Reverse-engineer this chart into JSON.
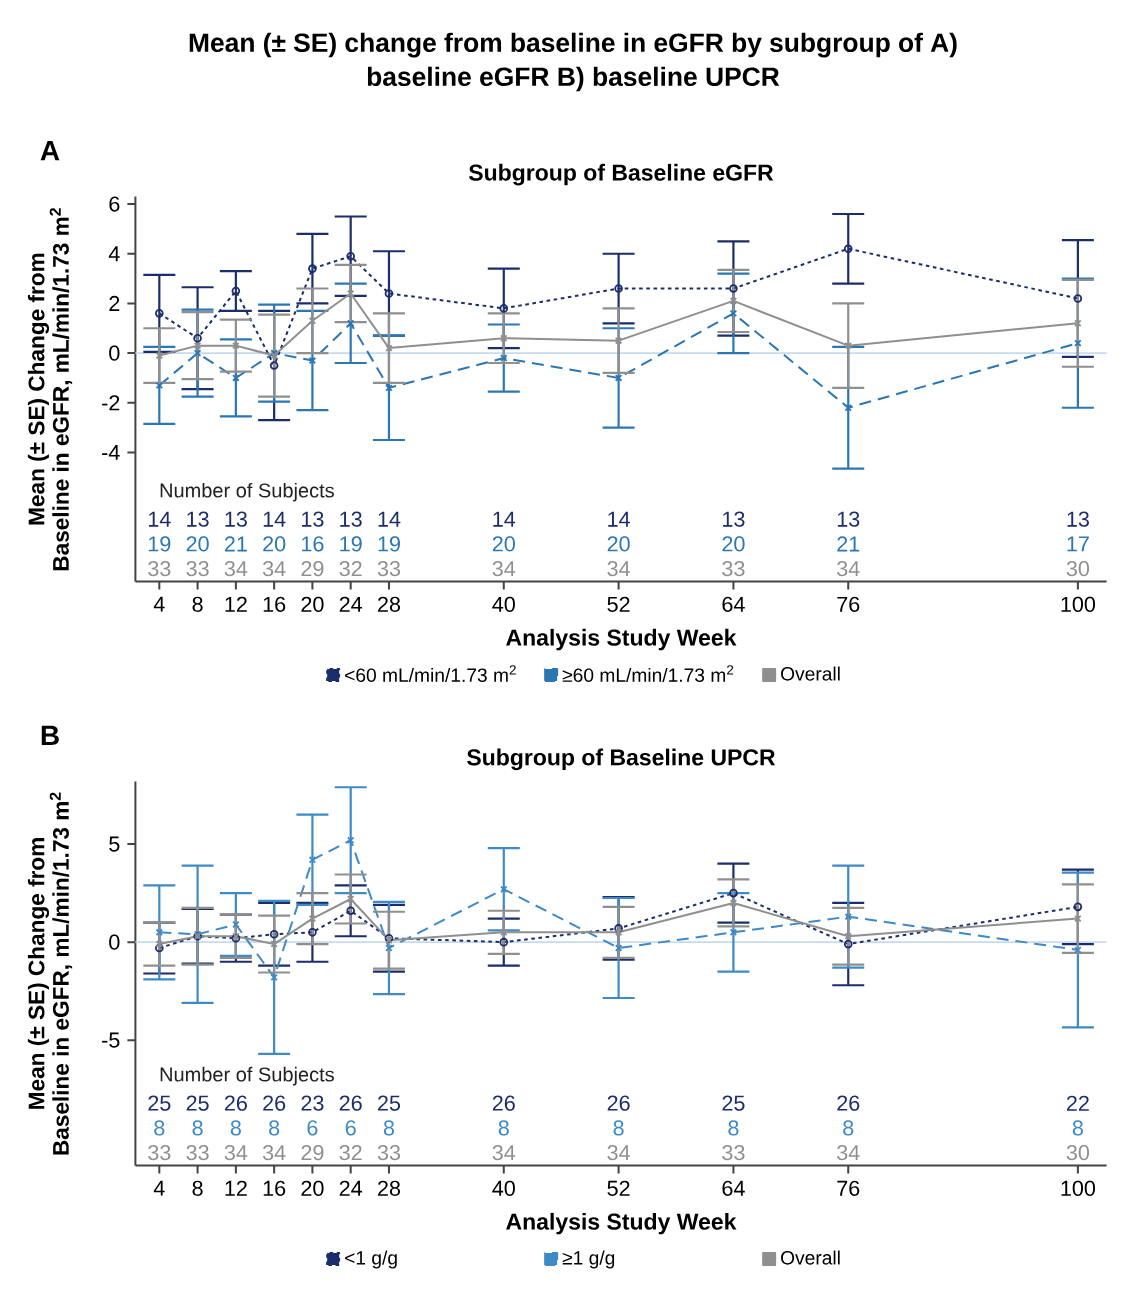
{
  "chart_data": [
    {
      "type": "line",
      "title": "Mean (± SE) change from baseline in eGFR by subgroup of A) baseline eGFR B) baseline UPCR",
      "subtitle": "Subgroup of Baseline eGFR",
      "xlabel": "Analysis Study Week",
      "ylabel": "Mean (± SE) Change from Baseline in eGFR, mL/min/1.73 m$^{2}$",
      "x": [
        4,
        8,
        12,
        16,
        20,
        24,
        28,
        40,
        52,
        64,
        76,
        100
      ],
      "xlim": [
        1.5,
        103
      ],
      "xticks": [
        4,
        8,
        12,
        16,
        20,
        24,
        28,
        40,
        52,
        64,
        76,
        100
      ],
      "ylim": [
        -9.2,
        6.3
      ],
      "yticks": [
        -4,
        -2,
        0,
        2,
        4,
        6
      ],
      "legend": "bottom",
      "ref_lines": [
        {
          "axis": "y",
          "value": 0,
          "color": "#c6dbef"
        }
      ],
      "series": [
        {
          "name": "<60 mL/min/1.73 m$^{2}$",
          "color": "#1c2d6b",
          "marker": "circle",
          "line_style": "dotted",
          "values": [
            1.6,
            0.6,
            2.5,
            -0.5,
            3.4,
            3.9,
            2.4,
            1.8,
            2.6,
            2.6,
            4.2,
            2.2
          ],
          "errors": [
            1.55,
            2.05,
            0.8,
            2.2,
            1.4,
            1.6,
            1.7,
            1.6,
            1.4,
            1.9,
            1.4,
            2.35
          ]
        },
        {
          "name": "≥60 mL/min/1.73 m$^{2}$",
          "color": "#2a77b4",
          "marker": "cross",
          "line_style": "dashed",
          "values": [
            -1.3,
            0.0,
            -1.0,
            0.0,
            -0.3,
            1.2,
            -1.4,
            -0.2,
            -1.0,
            1.6,
            -2.2,
            0.4
          ],
          "errors": [
            1.55,
            1.75,
            1.55,
            1.95,
            2.0,
            1.6,
            2.1,
            1.35,
            2.0,
            1.6,
            2.45,
            2.6
          ]
        },
        {
          "name": "Overall",
          "color": "#8f8f8f",
          "marker": "cross",
          "line_style": "solid",
          "values": [
            -0.1,
            0.3,
            0.3,
            -0.1,
            1.3,
            2.4,
            0.2,
            0.6,
            0.5,
            2.1,
            0.3,
            1.2
          ],
          "errors": [
            1.1,
            1.35,
            1.05,
            1.65,
            1.3,
            1.15,
            1.4,
            1.0,
            1.3,
            1.25,
            1.7,
            1.75
          ]
        }
      ],
      "annotations": [
        "A",
        "Number of Subjects",
        "14",
        "13",
        "13",
        "14",
        "13",
        "13",
        "14",
        "14",
        "14",
        "13",
        "13",
        "13",
        "19",
        "20",
        "21",
        "20",
        "16",
        "19",
        "19",
        "20",
        "20",
        "20",
        "21",
        "17",
        "33",
        "33",
        "34",
        "34",
        "29",
        "32",
        "33",
        "34",
        "34",
        "33",
        "34",
        "30"
      ]
    },
    {
      "type": "line",
      "title": "Subgroup of Baseline UPCR",
      "xlabel": "Analysis Study Week",
      "ylabel": "Mean (± SE) Change from Baseline in eGFR, mL/min/1.73 m$^{2}$",
      "x": [
        4,
        8,
        12,
        16,
        20,
        24,
        28,
        40,
        52,
        64,
        76,
        100
      ],
      "xlim": [
        1.5,
        103
      ],
      "xticks": [
        4,
        8,
        12,
        16,
        20,
        24,
        28,
        40,
        52,
        64,
        76,
        100
      ],
      "ylim": [
        -11.4,
        8.2
      ],
      "yticks": [
        -5,
        0,
        5
      ],
      "legend": "bottom",
      "ref_lines": [
        {
          "axis": "y",
          "value": 0,
          "color": "#c6dbef"
        }
      ],
      "series": [
        {
          "name": "<1 g/g",
          "color": "#1c2d6b",
          "marker": "circle",
          "line_style": "dotted",
          "values": [
            -0.3,
            0.3,
            0.2,
            0.4,
            0.5,
            1.6,
            0.2,
            0.0,
            0.7,
            2.5,
            -0.1,
            1.8
          ],
          "errors": [
            1.3,
            1.4,
            1.2,
            1.6,
            1.5,
            1.3,
            1.7,
            1.2,
            1.6,
            1.5,
            2.1,
            1.9
          ]
        },
        {
          "name": "≥1 g/g",
          "color": "#3d8ac6",
          "marker": "cross",
          "line_style": "dashed",
          "values": [
            0.5,
            0.4,
            0.9,
            -1.8,
            4.2,
            5.2,
            -0.3,
            2.7,
            -0.3,
            0.5,
            1.3,
            -0.4
          ],
          "errors": [
            2.4,
            3.5,
            1.6,
            3.9,
            2.3,
            2.7,
            2.35,
            2.1,
            2.55,
            2.0,
            2.6,
            3.95
          ]
        },
        {
          "name": "Overall",
          "color": "#8f8f8f",
          "marker": "cross",
          "line_style": "solid",
          "values": [
            -0.1,
            0.3,
            0.3,
            -0.1,
            1.2,
            2.2,
            0.1,
            0.5,
            0.5,
            2.0,
            0.3,
            1.2
          ],
          "errors": [
            1.1,
            1.45,
            1.1,
            1.45,
            1.3,
            1.25,
            1.45,
            1.1,
            1.3,
            1.2,
            1.45,
            1.75
          ]
        }
      ],
      "annotations": [
        "B",
        "Number of Subjects",
        "25",
        "25",
        "26",
        "26",
        "23",
        "26",
        "25",
        "26",
        "26",
        "25",
        "26",
        "22",
        "8",
        "8",
        "8",
        "8",
        "6",
        "6",
        "8",
        "8",
        "8",
        "8",
        "8",
        "8",
        "33",
        "33",
        "34",
        "34",
        "29",
        "32",
        "33",
        "34",
        "34",
        "33",
        "34",
        "30"
      ]
    }
  ]
}
